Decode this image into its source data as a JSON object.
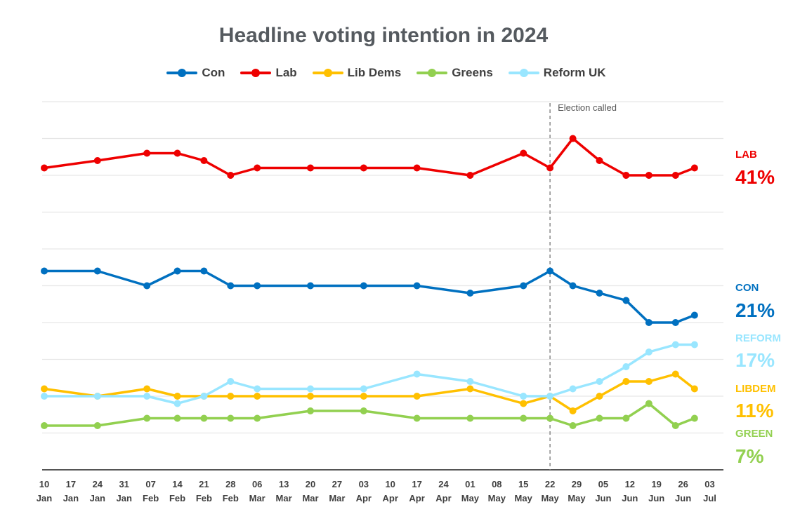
{
  "chart_data": {
    "type": "line",
    "title": "Headline voting intention in 2024",
    "x": [
      {
        "day": "10",
        "month": "Jan"
      },
      {
        "day": "17",
        "month": "Jan"
      },
      {
        "day": "24",
        "month": "Jan"
      },
      {
        "day": "31",
        "month": "Jan"
      },
      {
        "day": "07",
        "month": "Feb"
      },
      {
        "day": "14",
        "month": "Feb"
      },
      {
        "day": "21",
        "month": "Feb"
      },
      {
        "day": "28",
        "month": "Feb"
      },
      {
        "day": "06",
        "month": "Mar"
      },
      {
        "day": "13",
        "month": "Mar"
      },
      {
        "day": "20",
        "month": "Mar"
      },
      {
        "day": "27",
        "month": "Mar"
      },
      {
        "day": "03",
        "month": "Apr"
      },
      {
        "day": "10",
        "month": "Apr"
      },
      {
        "day": "17",
        "month": "Apr"
      },
      {
        "day": "24",
        "month": "Apr"
      },
      {
        "day": "01",
        "month": "May"
      },
      {
        "day": "08",
        "month": "May"
      },
      {
        "day": "15",
        "month": "May"
      },
      {
        "day": "22",
        "month": "May"
      },
      {
        "day": "29",
        "month": "May"
      },
      {
        "day": "05",
        "month": "Jun"
      },
      {
        "day": "12",
        "month": "Jun"
      },
      {
        "day": "19",
        "month": "Jun"
      },
      {
        "day": "26",
        "month": "Jun"
      },
      {
        "day": "03",
        "month": "Jul"
      }
    ],
    "ylim": [
      0,
      50
    ],
    "grid": true,
    "legend_position": "top",
    "annotation": {
      "text": "Election called",
      "x_date": "2024-05-22"
    },
    "series": [
      {
        "name": "Con",
        "key": "con",
        "color": "#0070c0",
        "end_label": "CON",
        "end_value": "21%",
        "points": [
          [
            "2024-01-10",
            27
          ],
          [
            "2024-01-24",
            27
          ],
          [
            "2024-02-06",
            25
          ],
          [
            "2024-02-14",
            27
          ],
          [
            "2024-02-21",
            27
          ],
          [
            "2024-02-28",
            25
          ],
          [
            "2024-03-06",
            25
          ],
          [
            "2024-03-20",
            25
          ],
          [
            "2024-04-03",
            25
          ],
          [
            "2024-04-17",
            25
          ],
          [
            "2024-05-01",
            24
          ],
          [
            "2024-05-15",
            25
          ],
          [
            "2024-05-22",
            27
          ],
          [
            "2024-05-28",
            25
          ],
          [
            "2024-06-04",
            24
          ],
          [
            "2024-06-11",
            23
          ],
          [
            "2024-06-17",
            20
          ],
          [
            "2024-06-24",
            20
          ],
          [
            "2024-06-29",
            21
          ]
        ]
      },
      {
        "name": "Lab",
        "key": "lab",
        "color": "#ee0000",
        "end_label": "LAB",
        "end_value": "41%",
        "points": [
          [
            "2024-01-10",
            41
          ],
          [
            "2024-01-24",
            42
          ],
          [
            "2024-02-06",
            43
          ],
          [
            "2024-02-14",
            43
          ],
          [
            "2024-02-21",
            42
          ],
          [
            "2024-02-28",
            40
          ],
          [
            "2024-03-06",
            41
          ],
          [
            "2024-03-20",
            41
          ],
          [
            "2024-04-03",
            41
          ],
          [
            "2024-04-17",
            41
          ],
          [
            "2024-05-01",
            40
          ],
          [
            "2024-05-15",
            43
          ],
          [
            "2024-05-22",
            41
          ],
          [
            "2024-05-28",
            45
          ],
          [
            "2024-06-04",
            42
          ],
          [
            "2024-06-11",
            40
          ],
          [
            "2024-06-17",
            40
          ],
          [
            "2024-06-24",
            40
          ],
          [
            "2024-06-29",
            41
          ]
        ]
      },
      {
        "name": "Lib Dems",
        "key": "libdem",
        "color": "#ffc000",
        "end_label": "LIBDEM",
        "end_value": "11%",
        "points": [
          [
            "2024-01-10",
            11
          ],
          [
            "2024-01-24",
            10
          ],
          [
            "2024-02-06",
            11
          ],
          [
            "2024-02-14",
            10
          ],
          [
            "2024-02-21",
            10
          ],
          [
            "2024-02-28",
            10
          ],
          [
            "2024-03-06",
            10
          ],
          [
            "2024-03-20",
            10
          ],
          [
            "2024-04-03",
            10
          ],
          [
            "2024-04-17",
            10
          ],
          [
            "2024-05-01",
            11
          ],
          [
            "2024-05-15",
            9
          ],
          [
            "2024-05-22",
            10
          ],
          [
            "2024-05-28",
            8
          ],
          [
            "2024-06-04",
            10
          ],
          [
            "2024-06-11",
            12
          ],
          [
            "2024-06-17",
            12
          ],
          [
            "2024-06-24",
            13
          ],
          [
            "2024-06-29",
            11
          ]
        ]
      },
      {
        "name": "Greens",
        "key": "green",
        "color": "#92d050",
        "end_label": "GREEN",
        "end_value": "7%",
        "points": [
          [
            "2024-01-10",
            6
          ],
          [
            "2024-01-24",
            6
          ],
          [
            "2024-02-06",
            7
          ],
          [
            "2024-02-14",
            7
          ],
          [
            "2024-02-21",
            7
          ],
          [
            "2024-02-28",
            7
          ],
          [
            "2024-03-06",
            7
          ],
          [
            "2024-03-20",
            8
          ],
          [
            "2024-04-03",
            8
          ],
          [
            "2024-04-17",
            7
          ],
          [
            "2024-05-01",
            7
          ],
          [
            "2024-05-15",
            7
          ],
          [
            "2024-05-22",
            7
          ],
          [
            "2024-05-28",
            6
          ],
          [
            "2024-06-04",
            7
          ],
          [
            "2024-06-11",
            7
          ],
          [
            "2024-06-17",
            9
          ],
          [
            "2024-06-24",
            6
          ],
          [
            "2024-06-29",
            7
          ]
        ]
      },
      {
        "name": "Reform UK",
        "key": "reform",
        "color": "#99e6ff",
        "end_label": "REFORM",
        "end_value": "17%",
        "points": [
          [
            "2024-01-10",
            10
          ],
          [
            "2024-01-24",
            10
          ],
          [
            "2024-02-06",
            10
          ],
          [
            "2024-02-14",
            9
          ],
          [
            "2024-02-21",
            10
          ],
          [
            "2024-02-28",
            12
          ],
          [
            "2024-03-06",
            11
          ],
          [
            "2024-03-20",
            11
          ],
          [
            "2024-04-03",
            11
          ],
          [
            "2024-04-17",
            13
          ],
          [
            "2024-05-01",
            12
          ],
          [
            "2024-05-15",
            10
          ],
          [
            "2024-05-22",
            10
          ],
          [
            "2024-05-28",
            11
          ],
          [
            "2024-06-04",
            12
          ],
          [
            "2024-06-11",
            14
          ],
          [
            "2024-06-17",
            16
          ],
          [
            "2024-06-24",
            17
          ],
          [
            "2024-06-29",
            17
          ]
        ]
      }
    ]
  }
}
